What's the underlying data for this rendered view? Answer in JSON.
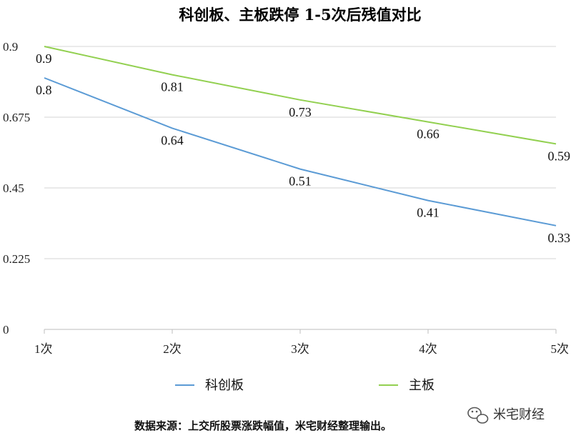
{
  "chart_data": {
    "type": "line",
    "title": "科创板、主板跌停 1-5次后残值对比",
    "categories": [
      "1次",
      "2次",
      "3次",
      "4次",
      "5次"
    ],
    "yticks": [
      "0",
      "0.225",
      "0.45",
      "0.675",
      "0.9"
    ],
    "ylim": [
      0,
      0.9
    ],
    "grid": true,
    "legend_position": "bottom",
    "series": [
      {
        "name": "科创板",
        "color": "#5b9bd5",
        "values": [
          0.8,
          0.64,
          0.51,
          0.41,
          0.33
        ],
        "labels": [
          "0.8",
          "0.64",
          "0.51",
          "0.41",
          "0.33"
        ]
      },
      {
        "name": "主板",
        "color": "#92d050",
        "values": [
          0.9,
          0.81,
          0.73,
          0.66,
          0.59
        ],
        "labels": [
          "0.9",
          "0.81",
          "0.73",
          "0.66",
          "0.59"
        ]
      }
    ]
  },
  "source_note": "数据来源：上交所股票涨跌幅值，米宅财经整理输出。",
  "watermark": {
    "icon": "wechat-icon",
    "text": "米宅财经"
  }
}
